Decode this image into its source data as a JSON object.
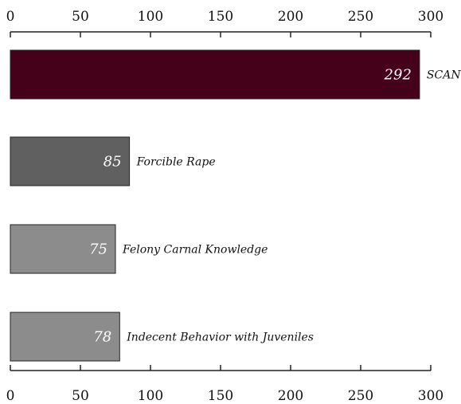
{
  "chart_data": {
    "type": "bar",
    "orientation": "horizontal",
    "categories": [
      "SCAN",
      "Forcible Rape",
      "Felony Carnal Knowledge",
      "Indecent Behavior with Juveniles"
    ],
    "values": [
      292,
      85,
      75,
      78
    ],
    "value_labels": [
      "292",
      "85",
      "75",
      "78"
    ],
    "bar_colors": [
      "#45001a",
      "#606060",
      "#8c8c8c",
      "#8c8c8c"
    ],
    "xlim": [
      0,
      300
    ],
    "xticks": [
      0,
      50,
      100,
      150,
      200,
      250,
      300
    ],
    "xtick_labels": [
      "0",
      "50",
      "100",
      "150",
      "200",
      "250",
      "300"
    ],
    "axis_positions": [
      "top",
      "bottom"
    ],
    "grid": false,
    "legend": "none",
    "title": "",
    "xlabel": "",
    "ylabel": ""
  }
}
